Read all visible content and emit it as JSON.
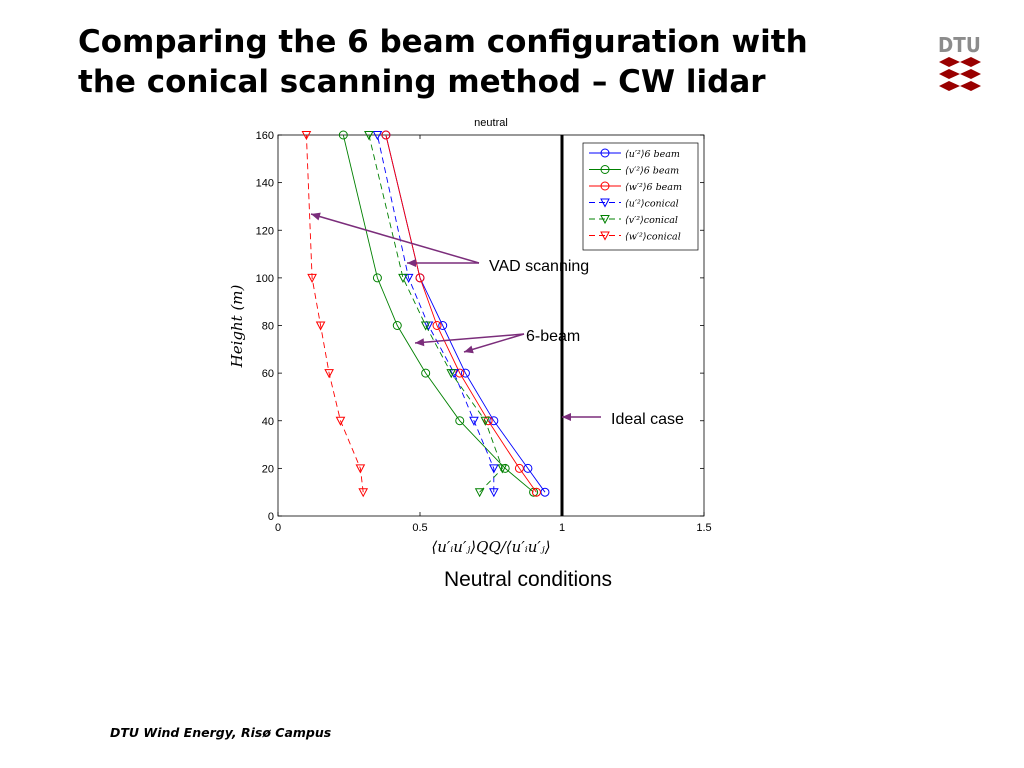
{
  "slide": {
    "title_line1": "Comparing the 6 beam configuration with",
    "title_line2": "the conical scanning method – CW lidar",
    "caption": "Neutral conditions",
    "footer": "DTU Wind Energy, Risø Campus",
    "logo_text": "DTU",
    "logo_color": "#990000"
  },
  "annotations": {
    "vad": "VAD scanning",
    "six_beam": "6-beam",
    "ideal": "Ideal case",
    "arrow_color": "#7b2d7b"
  },
  "chart_data": {
    "type": "line",
    "title": "neutral",
    "xlabel": "⟨u′ᵢu′ⱼ⟩QQ/⟨u′ᵢu′ⱼ⟩",
    "ylabel": "Height (m)",
    "xlim": [
      0,
      1.5
    ],
    "ylim": [
      0,
      160
    ],
    "xticks": [
      "0",
      "0.5",
      "1",
      "1.5"
    ],
    "yticks": [
      "0",
      "20",
      "40",
      "60",
      "80",
      "100",
      "120",
      "140",
      "160"
    ],
    "grid": false,
    "legend_position": "top-right",
    "ideal_line_x": 1,
    "series": [
      {
        "name": "⟨u′²⟩6 beam",
        "color": "#0000ff",
        "dashed": false,
        "marker": "circle",
        "x": [
          0.94,
          0.88,
          0.76,
          0.66,
          0.58,
          0.5,
          0.38
        ],
        "y": [
          10,
          20,
          40,
          60,
          80,
          100,
          160
        ]
      },
      {
        "name": "⟨v′²⟩6 beam",
        "color": "#008000",
        "dashed": false,
        "marker": "circle",
        "x": [
          0.9,
          0.8,
          0.64,
          0.52,
          0.42,
          0.35,
          0.23
        ],
        "y": [
          10,
          20,
          40,
          60,
          80,
          100,
          160
        ]
      },
      {
        "name": "⟨w′²⟩6 beam",
        "color": "#ff0000",
        "dashed": false,
        "marker": "circle",
        "x": [
          0.91,
          0.85,
          0.74,
          0.64,
          0.56,
          0.5,
          0.38
        ],
        "y": [
          10,
          20,
          40,
          60,
          80,
          100,
          160
        ]
      },
      {
        "name": "⟨u′²⟩conical",
        "color": "#0000ff",
        "dashed": true,
        "marker": "triangle",
        "x": [
          0.76,
          0.76,
          0.69,
          0.62,
          0.53,
          0.46,
          0.35
        ],
        "y": [
          10,
          20,
          40,
          60,
          80,
          100,
          160
        ]
      },
      {
        "name": "⟨v′²⟩conical",
        "color": "#008000",
        "dashed": true,
        "marker": "triangle",
        "x": [
          0.71,
          0.79,
          0.73,
          0.61,
          0.52,
          0.44,
          0.32
        ],
        "y": [
          10,
          20,
          40,
          60,
          80,
          100,
          160
        ]
      },
      {
        "name": "⟨w′²⟩conical",
        "color": "#ff0000",
        "dashed": true,
        "marker": "triangle",
        "x": [
          0.3,
          0.29,
          0.22,
          0.18,
          0.15,
          0.12,
          0.1
        ],
        "y": [
          10,
          20,
          40,
          60,
          80,
          100,
          160
        ]
      }
    ]
  }
}
